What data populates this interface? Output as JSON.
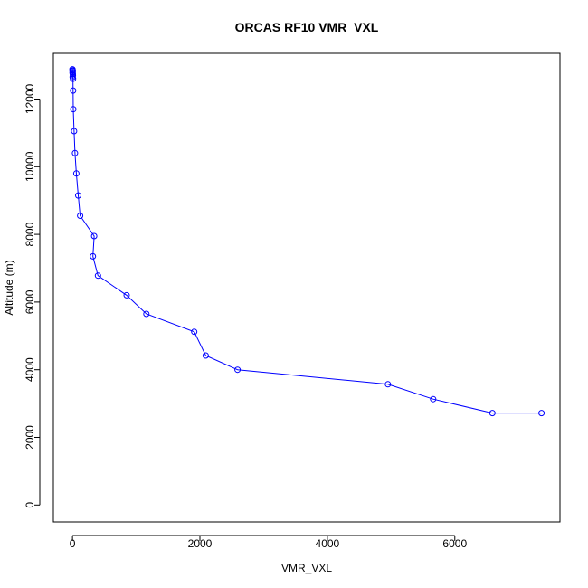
{
  "chart_data": {
    "type": "line",
    "title": "ORCAS RF10 VMR_VXL",
    "xlabel": "VMR_VXL",
    "ylabel": "Altitude (m)",
    "xlim": [
      -300,
      7650
    ],
    "ylim": [
      -500,
      13350
    ],
    "xticks": [
      0,
      2000,
      4000,
      6000
    ],
    "yticks": [
      0,
      2000,
      4000,
      6000,
      8000,
      10000,
      12000
    ],
    "xtick_labels": [
      "0",
      "2000",
      "4000",
      "6000"
    ],
    "ytick_labels": [
      "0",
      "2000",
      "4000",
      "6000",
      "8000",
      "10000",
      "12000"
    ],
    "grid": false,
    "colors": {
      "series": "#0000ff",
      "axis": "#000000"
    },
    "series": [
      {
        "x": [
          0,
          2,
          4,
          3,
          1,
          5,
          6,
          2,
          8,
          10,
          12,
          25,
          40,
          60,
          90,
          120,
          340,
          320,
          400,
          850,
          1160,
          1910,
          2090,
          2590,
          4950,
          5660,
          6590,
          7360
        ],
        "y": [
          12880,
          12850,
          12830,
          12800,
          12770,
          12740,
          12700,
          12650,
          12600,
          12250,
          11700,
          11050,
          10400,
          9800,
          9150,
          8550,
          7950,
          7350,
          6780,
          6200,
          5650,
          5120,
          4420,
          4000,
          3570,
          3130,
          2720,
          2720
        ]
      }
    ]
  }
}
